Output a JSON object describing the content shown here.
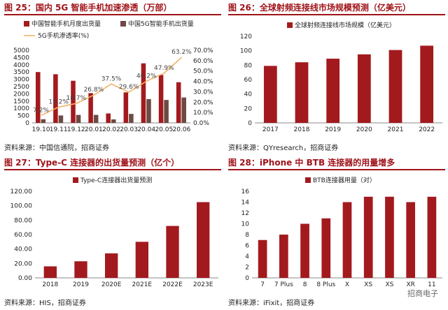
{
  "chart_data": [
    {
      "type": "bar",
      "title": "图 25：国内 5G 智能手机加速渗透（万部）",
      "source": "资料来源：中国信通院，招商证券",
      "categories": [
        "19.10",
        "19.11",
        "19.12",
        "20.01",
        "20.02",
        "20.03",
        "20.04",
        "20.05",
        "20.06"
      ],
      "series": [
        {
          "name": "中国智能手机月度出货量",
          "type": "bar",
          "axis": "left",
          "color": "#a31a1e",
          "values": [
            3500,
            3350,
            2900,
            2050,
            650,
            2100,
            4100,
            3300,
            2800
          ]
        },
        {
          "name": "中国5G智能手机出货量",
          "type": "bar",
          "axis": "left",
          "color": "#6e4a44",
          "values": [
            250,
            510,
            550,
            550,
            240,
            620,
            1640,
            1580,
            1750
          ]
        },
        {
          "name": "5G手机渗透率(%)",
          "type": "line",
          "axis": "right",
          "color": "#f2b266",
          "values": [
            7.2,
            15.2,
            18.7,
            26.8,
            37.5,
            29.6,
            40.2,
            47.9,
            63.2
          ],
          "labels": [
            "7.2%",
            "15.2%",
            "18.7%",
            "26.8%",
            "37.5%",
            "29.6%",
            "40.2%",
            "47.9%",
            "63.2%"
          ]
        }
      ],
      "ylim": [
        0,
        5000
      ],
      "yticks": [
        "0",
        "500",
        "1000",
        "1500",
        "2000",
        "2500",
        "3000",
        "3500",
        "4000",
        "4500",
        "5000"
      ],
      "y2lim": [
        0,
        70
      ],
      "y2ticks": [
        "0.0%",
        "10.0%",
        "20.0%",
        "30.0%",
        "40.0%",
        "50.0%",
        "60.0%",
        "70.0%"
      ],
      "legend_position": "top-left"
    },
    {
      "type": "bar",
      "title": "图 26：全球射频连接线市场规模预测（亿美元）",
      "source": "资料来源：QYresearch，招商证券",
      "categories": [
        "2017",
        "2018",
        "2019",
        "2020",
        "2021",
        "2022"
      ],
      "series": [
        {
          "name": "全球射频连接线市场规模（亿美元）",
          "color": "#a31a1e",
          "values": [
            79,
            84,
            89,
            95,
            101,
            107
          ]
        }
      ],
      "ylim": [
        0,
        120
      ],
      "yticks": [
        "0",
        "20",
        "40",
        "60",
        "80",
        "100",
        "120"
      ],
      "legend_position": "top-center"
    },
    {
      "type": "bar",
      "title": "图 27：Type-C 连接器的出货量预测（亿个）",
      "source": "资料来源：HIS，招商证券",
      "categories": [
        "2018",
        "2019",
        "2020E",
        "2021E",
        "2022E",
        "2023E"
      ],
      "series": [
        {
          "name": "Type-C连接器出货量预测",
          "color": "#a31a1e",
          "values": [
            16,
            23,
            34,
            50,
            72,
            105
          ]
        }
      ],
      "ylim": [
        0,
        120
      ],
      "yticks": [
        "0.00",
        "20.00",
        "40.00",
        "60.00",
        "80.00",
        "100.00",
        "120.00"
      ],
      "legend_position": "top-center"
    },
    {
      "type": "bar",
      "title": "图 28：iPhone 中 BTB 连接器的用量增多",
      "source": "资料来源：iFixit，招商证券",
      "categories": [
        "7",
        "7 Plus",
        "8",
        "8 Plus",
        "X",
        "XS",
        "XS",
        "XR",
        "11"
      ],
      "series": [
        {
          "name": "BTB连接器用量（对）",
          "color": "#a31a1e",
          "values": [
            7,
            8,
            10,
            11,
            14,
            15,
            15,
            14,
            15
          ]
        }
      ],
      "ylim": [
        0,
        16
      ],
      "yticks": [
        "0",
        "2",
        "4",
        "6",
        "8",
        "10",
        "12",
        "14",
        "16"
      ],
      "legend_position": "top-center"
    }
  ],
  "watermark": "招商电子"
}
